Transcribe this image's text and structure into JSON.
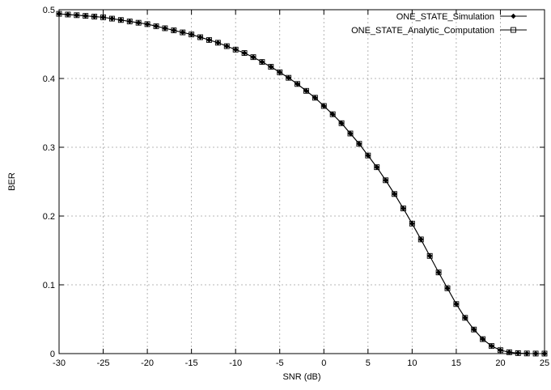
{
  "chart_data": {
    "type": "line",
    "title": "",
    "xlabel": "SNR (dB)",
    "ylabel": "BER",
    "xlim": [
      -30,
      25
    ],
    "ylim": [
      0,
      0.5
    ],
    "xticks": [
      -30,
      -25,
      -20,
      -15,
      -10,
      -5,
      0,
      5,
      10,
      15,
      20,
      25
    ],
    "yticks": [
      0,
      0.1,
      0.2,
      0.3,
      0.4,
      0.5
    ],
    "grid": true,
    "legend_position": "top-right",
    "x": [
      -30,
      -29,
      -28,
      -27,
      -26,
      -25,
      -24,
      -23,
      -22,
      -21,
      -20,
      -19,
      -18,
      -17,
      -16,
      -15,
      -14,
      -13,
      -12,
      -11,
      -10,
      -9,
      -8,
      -7,
      -6,
      -5,
      -4,
      -3,
      -2,
      -1,
      0,
      1,
      2,
      3,
      4,
      5,
      6,
      7,
      8,
      9,
      10,
      11,
      12,
      13,
      14,
      15,
      16,
      17,
      18,
      19,
      20,
      21,
      22,
      23,
      24,
      25
    ],
    "series": [
      {
        "name": "ONE_STATE_Simulation",
        "marker": "diamond-filled",
        "color": "#000000",
        "values": [
          0.494,
          0.493,
          0.492,
          0.491,
          0.49,
          0.489,
          0.487,
          0.485,
          0.483,
          0.481,
          0.479,
          0.476,
          0.473,
          0.47,
          0.467,
          0.464,
          0.46,
          0.456,
          0.452,
          0.447,
          0.442,
          0.437,
          0.431,
          0.424,
          0.417,
          0.409,
          0.401,
          0.392,
          0.382,
          0.372,
          0.36,
          0.348,
          0.335,
          0.32,
          0.305,
          0.288,
          0.271,
          0.252,
          0.232,
          0.211,
          0.189,
          0.166,
          0.142,
          0.118,
          0.095,
          0.072,
          0.052,
          0.035,
          0.021,
          0.011,
          0.005,
          0.002,
          0.0007,
          0.0002,
          5e-05,
          1e-05
        ]
      },
      {
        "name": "ONE_STATE_Analytic_Computation",
        "marker": "square-open",
        "color": "#000000",
        "values": [
          0.494,
          0.493,
          0.492,
          0.491,
          0.49,
          0.489,
          0.487,
          0.485,
          0.483,
          0.481,
          0.479,
          0.476,
          0.473,
          0.47,
          0.467,
          0.464,
          0.46,
          0.456,
          0.452,
          0.447,
          0.442,
          0.437,
          0.431,
          0.424,
          0.417,
          0.409,
          0.401,
          0.392,
          0.382,
          0.372,
          0.36,
          0.348,
          0.335,
          0.32,
          0.305,
          0.288,
          0.271,
          0.252,
          0.232,
          0.211,
          0.189,
          0.166,
          0.142,
          0.118,
          0.095,
          0.072,
          0.052,
          0.035,
          0.021,
          0.011,
          0.005,
          0.002,
          0.0007,
          0.0002,
          5e-05,
          1e-05
        ]
      }
    ]
  }
}
